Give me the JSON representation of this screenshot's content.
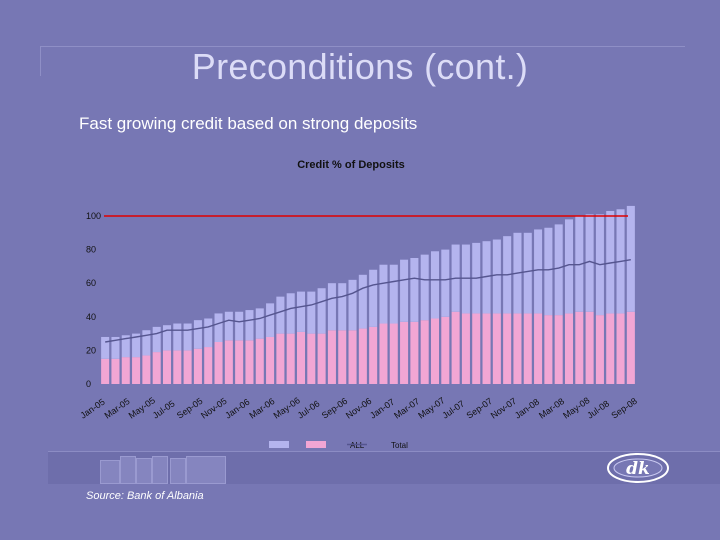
{
  "slide": {
    "title": "Preconditions (cont.)",
    "subtitle": "Fast growing credit based on strong deposits",
    "source": "Source: Bank of Albania"
  },
  "colors": {
    "background": "#7777b4",
    "fx": "#b4b4ee",
    "all": "#f2a6d4",
    "total": "#55558f",
    "reference_line": "#e00000"
  },
  "icons": {
    "logo": "dk-logo"
  },
  "chart_data": {
    "type": "bar",
    "title": "Credit % of Deposits",
    "stacked": true,
    "ylim": [
      0,
      100
    ],
    "yticks": [
      0,
      20,
      40,
      60,
      80,
      100
    ],
    "xlabel": "",
    "ylabel": "",
    "grid": false,
    "legend_position": "bottom",
    "reference_line": 100,
    "tick_labels": [
      "Jan-05",
      "Mar-05",
      "May-05",
      "Jul-05",
      "Sep-05",
      "Nov-05",
      "Jan-06",
      "Mar-06",
      "May-06",
      "Jul-06",
      "Sep-06",
      "Nov-06",
      "Jan-07",
      "Mar-07",
      "May-07",
      "Jul-07",
      "Sep-07",
      "Nov-07",
      "Jan-08",
      "Mar-08",
      "May-08",
      "Jul-08",
      "Sep-08"
    ],
    "series": [
      {
        "name": "FX",
        "kind": "bar",
        "values": [
          13,
          13,
          13,
          14,
          15,
          15,
          15,
          16,
          16,
          17,
          17,
          17,
          17,
          17,
          18,
          18,
          20,
          22,
          24,
          24,
          25,
          27,
          28,
          28,
          30,
          32,
          34,
          35,
          35,
          37,
          38,
          39,
          40,
          40,
          40,
          41,
          42,
          43,
          44,
          46,
          48,
          48,
          50,
          52,
          54,
          56,
          57,
          58,
          60,
          61,
          62,
          63
        ]
      },
      {
        "name": "ALL",
        "kind": "bar",
        "values": [
          15,
          15,
          16,
          16,
          17,
          19,
          20,
          20,
          20,
          21,
          22,
          25,
          26,
          26,
          26,
          27,
          28,
          30,
          30,
          31,
          30,
          30,
          32,
          32,
          32,
          33,
          34,
          36,
          36,
          37,
          37,
          38,
          39,
          40,
          43,
          42,
          42,
          42,
          42,
          42,
          42,
          42,
          42,
          41,
          41,
          42,
          43,
          43,
          41,
          42,
          42,
          43
        ]
      },
      {
        "name": "Total",
        "kind": "line",
        "values": [
          25,
          26,
          27,
          28,
          29,
          30,
          32,
          32,
          32,
          33,
          34,
          36,
          38,
          37,
          38,
          39,
          41,
          43,
          45,
          46,
          47,
          49,
          51,
          52,
          54,
          57,
          59,
          60,
          61,
          62,
          63,
          62,
          62,
          62,
          63,
          63,
          63,
          64,
          65,
          65,
          66,
          67,
          68,
          68,
          69,
          71,
          71,
          73,
          71,
          72,
          73,
          74
        ]
      }
    ]
  }
}
